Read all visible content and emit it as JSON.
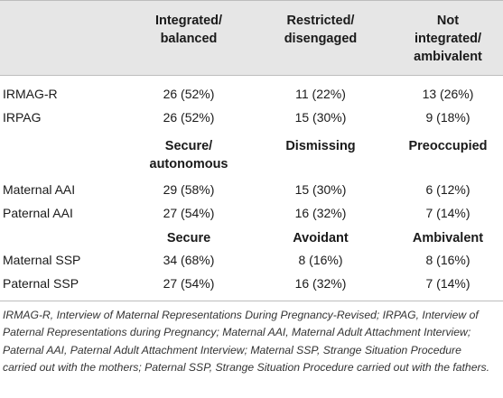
{
  "headers": {
    "col1_line1": "Integrated/",
    "col1_line2": "balanced",
    "col2_line1": "Restricted/",
    "col2_line2": "disengaged",
    "col3_line1": "Not",
    "col3_line2": "integrated/",
    "col3_line3": "ambivalent"
  },
  "rows_a": [
    {
      "label": "IRMAG-R",
      "c1": "26 (52%)",
      "c2": "11 (22%)",
      "c3": "13 (26%)"
    },
    {
      "label": "IRPAG",
      "c1": "26 (52%)",
      "c2": "15 (30%)",
      "c3": "9 (18%)"
    }
  ],
  "sub_b": {
    "c1_line1": "Secure/",
    "c1_line2": "autonomous",
    "c2": "Dismissing",
    "c3": "Preoccupied"
  },
  "rows_b": [
    {
      "label": "Maternal AAI",
      "c1": "29 (58%)",
      "c2": "15 (30%)",
      "c3": "6 (12%)"
    },
    {
      "label": "Paternal AAI",
      "c1": "27 (54%)",
      "c2": "16 (32%)",
      "c3": "7 (14%)"
    }
  ],
  "sub_c": {
    "c1": "Secure",
    "c2": "Avoidant",
    "c3": "Ambivalent"
  },
  "rows_c": [
    {
      "label": "Maternal SSP",
      "c1": "34 (68%)",
      "c2": "8 (16%)",
      "c3": "8 (16%)"
    },
    {
      "label": "Paternal SSP",
      "c1": "27 (54%)",
      "c2": "16 (32%)",
      "c3": "7 (14%)"
    }
  ],
  "footnote": "IRMAG-R, Interview of Maternal Representations During Pregnancy-Revised; IRPAG, Interview of Paternal Representations during Pregnancy; Maternal AAI, Maternal Adult Attachment Interview; Paternal AAI, Paternal Adult Attachment Interview; Maternal SSP, Strange Situation Procedure carried out with the mothers; Paternal SSP, Strange Situation Procedure carried out with the fathers."
}
